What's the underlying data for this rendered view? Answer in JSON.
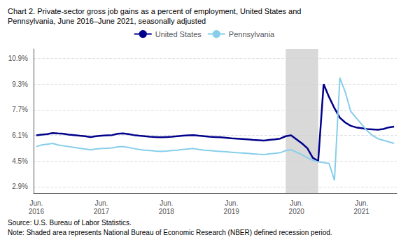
{
  "chart_data": {
    "type": "line",
    "title": "Chart 2. Private-sector gross job gains as a percent of employment, United States and\nPennsylvania, June 2016–June 2021, seasonally adjusted",
    "notes": [
      "Source: U.S. Bureau of Labor Statistics.",
      "Note: Shaded area represents National Bureau of Economic Research (NBER) defined recession period."
    ],
    "categories": [
      "Jun.\n2016",
      null,
      null,
      null,
      null,
      null,
      null,
      null,
      null,
      null,
      null,
      null,
      "Jun.\n2017",
      null,
      null,
      null,
      null,
      null,
      null,
      null,
      null,
      null,
      null,
      null,
      "Jun.\n2018",
      null,
      null,
      null,
      null,
      null,
      null,
      null,
      null,
      null,
      null,
      null,
      "Jun.\n2019",
      null,
      null,
      null,
      null,
      null,
      null,
      null,
      null,
      null,
      null,
      null,
      "Jun.\n2020",
      null,
      null,
      null,
      null,
      null,
      null,
      null,
      null,
      null,
      null,
      null,
      "Jun.\n2021",
      null,
      null,
      null,
      null,
      null,
      null
    ],
    "series": [
      {
        "name": "United States",
        "color": "#00008B",
        "values": [
          6.1,
          6.15,
          6.18,
          6.25,
          6.22,
          6.2,
          6.15,
          6.12,
          6.08,
          6.05,
          6.0,
          6.05,
          6.08,
          6.1,
          6.12,
          6.2,
          6.22,
          6.18,
          6.12,
          6.08,
          6.05,
          6.02,
          6.0,
          5.98,
          6.0,
          6.02,
          6.05,
          6.08,
          6.1,
          6.12,
          6.08,
          6.05,
          6.02,
          6.0,
          5.98,
          5.95,
          5.92,
          5.9,
          5.88,
          5.85,
          5.82,
          5.8,
          5.78,
          5.82,
          5.85,
          5.9,
          6.05,
          6.1,
          5.85,
          5.6,
          5.3,
          4.7,
          4.5,
          9.3,
          8.5,
          7.8,
          7.2,
          6.9,
          6.7,
          6.6,
          6.55,
          6.5,
          6.48,
          6.45,
          6.5,
          6.6,
          6.65
        ]
      },
      {
        "name": "Pennsylvania",
        "color": "#87CEEB",
        "values": [
          5.4,
          5.5,
          5.55,
          5.6,
          5.5,
          5.45,
          5.4,
          5.35,
          5.3,
          5.25,
          5.2,
          5.25,
          5.28,
          5.3,
          5.32,
          5.38,
          5.4,
          5.35,
          5.28,
          5.22,
          5.18,
          5.15,
          5.12,
          5.1,
          5.12,
          5.15,
          5.18,
          5.22,
          5.25,
          5.28,
          5.22,
          5.18,
          5.15,
          5.12,
          5.1,
          5.08,
          5.05,
          5.02,
          5.0,
          4.98,
          4.95,
          4.92,
          4.9,
          4.95,
          4.98,
          5.02,
          5.15,
          5.2,
          5.05,
          4.9,
          4.7,
          4.55,
          4.45,
          4.4,
          4.35,
          3.3,
          9.7,
          8.8,
          7.6,
          7.2,
          6.8,
          6.4,
          6.1,
          5.9,
          5.8,
          5.7,
          5.6
        ]
      }
    ],
    "shaded_area": {
      "start": 46,
      "end": 52,
      "color": "#d0d0d0"
    },
    "ylim": [
      2.5,
      11.5
    ],
    "yticks": [
      {
        "value": 2.9,
        "label": "2.9%"
      },
      {
        "value": 4.5,
        "label": "4.5%"
      },
      {
        "value": 6.1,
        "label": "6.1%"
      },
      {
        "value": 7.7,
        "label": "7.7%"
      },
      {
        "value": 9.3,
        "label": "9.3%"
      },
      {
        "value": 10.9,
        "label": "10.9%"
      }
    ],
    "grid": true,
    "legend": "top"
  }
}
